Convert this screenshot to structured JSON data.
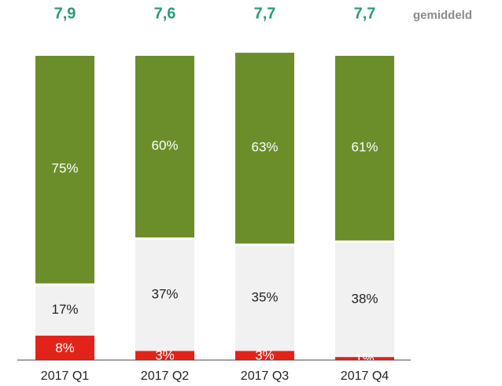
{
  "chart_data": {
    "type": "stacked_bar",
    "categories": [
      "2017 Q1",
      "2017 Q2",
      "2017 Q3",
      "2017 Q4"
    ],
    "ylim": [
      0,
      100
    ],
    "series": [
      {
        "color": "#e2231a",
        "values": [
          8,
          3,
          3,
          1
        ],
        "value_labels": [
          "8%",
          "3%",
          "3%",
          "1%"
        ]
      },
      {
        "color": "#f1f1f1",
        "values": [
          17,
          37,
          35,
          38
        ],
        "value_labels": [
          "17%",
          "37%",
          "35%",
          "38%"
        ]
      },
      {
        "color": "#6b8e2b",
        "values": [
          75,
          60,
          63,
          61
        ],
        "value_labels": [
          "75%",
          "60%",
          "63%",
          "61%"
        ]
      }
    ],
    "average": {
      "name": "gemiddeld",
      "color": "#2a9a7c",
      "values": [
        7.9,
        7.6,
        7.7,
        7.7
      ],
      "value_labels": [
        "7,9",
        "7,6",
        "7,7",
        "7,7"
      ]
    }
  }
}
